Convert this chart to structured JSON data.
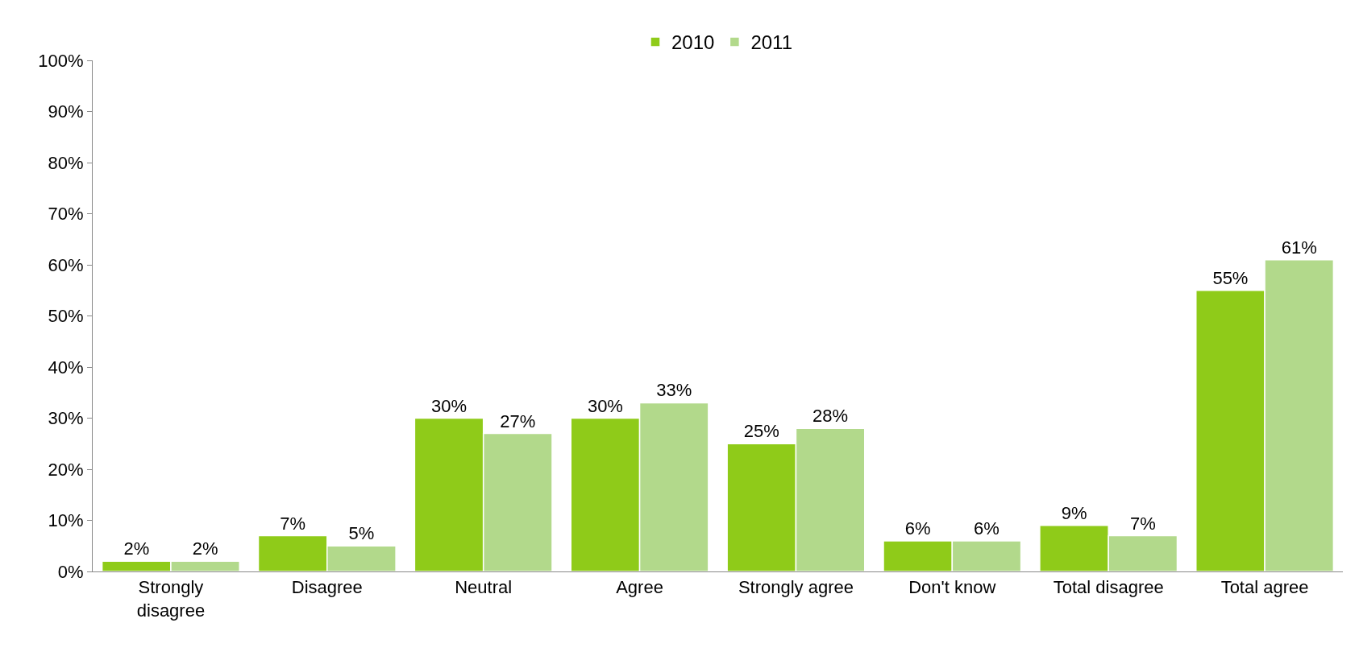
{
  "chart_data": {
    "type": "bar",
    "categories": [
      "Strongly\ndisagree",
      "Disagree",
      "Neutral",
      "Agree",
      "Strongly agree",
      "Don't know",
      "Total disagree",
      "Total agree"
    ],
    "series": [
      {
        "name": "2010",
        "color": "#8fcb19",
        "values": [
          2,
          7,
          30,
          30,
          25,
          6,
          9,
          55
        ]
      },
      {
        "name": "2011",
        "color": "#b2d98b",
        "values": [
          2,
          5,
          27,
          33,
          28,
          6,
          7,
          61
        ]
      }
    ],
    "ylim": [
      0,
      100
    ],
    "yticks": [
      {
        "value": 0,
        "label": "0%"
      },
      {
        "value": 10,
        "label": "10%"
      },
      {
        "value": 20,
        "label": "20%"
      },
      {
        "value": 30,
        "label": "30%"
      },
      {
        "value": 40,
        "label": "40%"
      },
      {
        "value": 50,
        "label": "50%"
      },
      {
        "value": 60,
        "label": "60%"
      },
      {
        "value": 70,
        "label": "70%"
      },
      {
        "value": 80,
        "label": "80%"
      },
      {
        "value": 90,
        "label": "90%"
      },
      {
        "value": 100,
        "label": "100%"
      }
    ],
    "value_labels": [
      [
        "2%",
        "7%",
        "30%",
        "30%",
        "25%",
        "6%",
        "9%",
        "55%"
      ],
      [
        "2%",
        "5%",
        "27%",
        "33%",
        "28%",
        "6%",
        "7%",
        "61%"
      ]
    ],
    "legend": "top"
  }
}
